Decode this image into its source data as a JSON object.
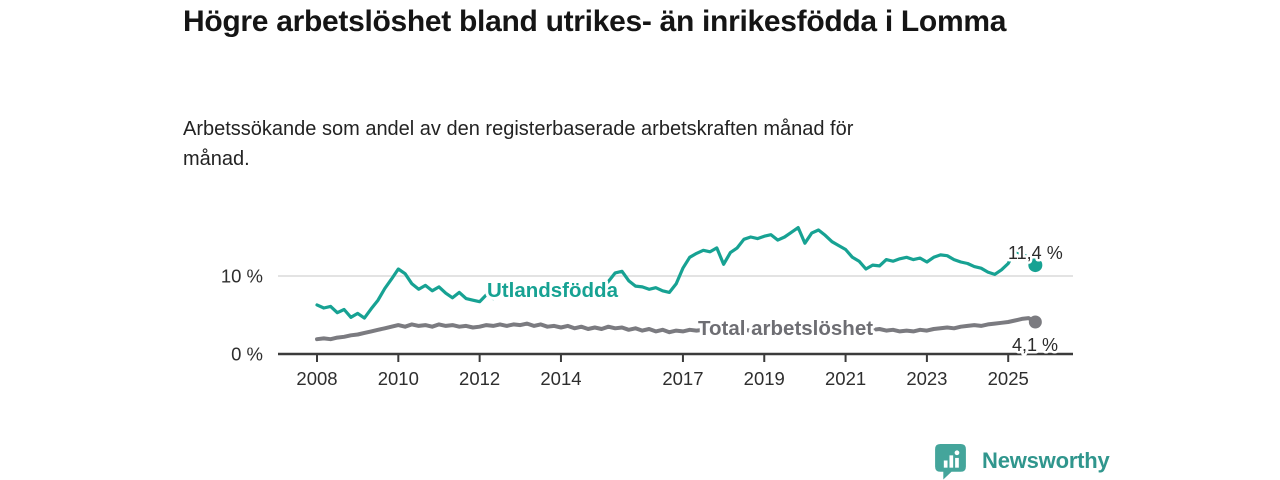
{
  "header": {},
  "chart_data": {
    "type": "line",
    "title": "Högre arbetslöshet bland utrikes- än inrikesfödda i Lomma",
    "subtitle": "Arbetssökande som andel av den registerbaserade arbetskraften månad för månad.",
    "x_start": 2008,
    "x_step": 0.16667,
    "x_range": [
      2008,
      2025.7
    ],
    "y_range": [
      0,
      17.5
    ],
    "grid": "horizontal gridline at 10% only",
    "legend": "inline series labels on chart",
    "x_ticks": [
      {
        "year": 2008,
        "label": "2008"
      },
      {
        "year": 2010,
        "label": "2010"
      },
      {
        "year": 2012,
        "label": "2012"
      },
      {
        "year": 2014,
        "label": "2014"
      },
      {
        "year": 2017,
        "label": "2017"
      },
      {
        "year": 2019,
        "label": "2019"
      },
      {
        "year": 2021,
        "label": "2021"
      },
      {
        "year": 2023,
        "label": "2023"
      },
      {
        "year": 2025,
        "label": "2025"
      }
    ],
    "y_ticks": [
      {
        "value": 0,
        "label": "0 %"
      },
      {
        "value": 10,
        "label": "10 %"
      }
    ],
    "colors": {
      "grid": "#dadada",
      "axis": "#3b3b3b",
      "axis_text": "#2e2e2e",
      "end_label_text": "#2b2b2b"
    },
    "series": [
      {
        "name": "Utlandsfödda",
        "color": "#17a293",
        "label_color": "#17a293",
        "end_label": "11,4 %",
        "values": [
          6.3,
          5.9,
          6.1,
          5.3,
          5.7,
          4.7,
          5.2,
          4.6,
          5.8,
          6.9,
          8.4,
          9.6,
          10.9,
          10.3,
          9.0,
          8.3,
          8.8,
          8.1,
          8.6,
          7.8,
          7.2,
          7.9,
          7.1,
          6.9,
          6.7,
          7.6,
          7.1,
          7.9,
          7.5,
          8.1,
          8.0,
          8.5,
          8.1,
          8.6,
          8.3,
          7.9,
          8.2,
          8.0,
          8.4,
          8.1,
          7.8,
          8.0,
          8.4,
          9.3,
          10.4,
          10.6,
          9.4,
          8.7,
          8.6,
          8.3,
          8.5,
          8.1,
          7.9,
          9.0,
          11.0,
          12.4,
          12.9,
          13.3,
          13.1,
          13.6,
          11.5,
          13.0,
          13.6,
          14.7,
          15.0,
          14.8,
          15.1,
          15.3,
          14.6,
          15.0,
          15.6,
          16.2,
          14.2,
          15.5,
          15.9,
          15.2,
          14.4,
          13.9,
          13.4,
          12.4,
          11.9,
          10.9,
          11.4,
          11.3,
          12.1,
          11.9,
          12.2,
          12.4,
          12.1,
          12.3,
          11.8,
          12.4,
          12.7,
          12.6,
          12.1,
          11.8,
          11.6,
          11.2,
          11.0,
          10.5,
          10.2,
          10.8,
          11.6,
          13.2,
          12.8,
          12.4,
          11.4
        ]
      },
      {
        "name": "Total arbetslöshet",
        "color": "#7b7b80",
        "label_color": "#6e6e73",
        "end_label": "4,1 %",
        "values": [
          1.9,
          2.0,
          1.9,
          2.1,
          2.2,
          2.4,
          2.5,
          2.7,
          2.9,
          3.1,
          3.3,
          3.5,
          3.7,
          3.5,
          3.8,
          3.6,
          3.7,
          3.5,
          3.8,
          3.6,
          3.7,
          3.5,
          3.6,
          3.4,
          3.5,
          3.7,
          3.6,
          3.8,
          3.6,
          3.8,
          3.7,
          3.9,
          3.6,
          3.8,
          3.5,
          3.6,
          3.4,
          3.6,
          3.3,
          3.5,
          3.2,
          3.4,
          3.2,
          3.5,
          3.3,
          3.4,
          3.1,
          3.3,
          3.0,
          3.2,
          2.9,
          3.1,
          2.8,
          3.0,
          2.9,
          3.1,
          3.0,
          3.1,
          2.9,
          3.0,
          2.8,
          3.0,
          2.9,
          3.1,
          3.0,
          3.1,
          3.0,
          3.2,
          3.1,
          3.3,
          3.2,
          3.4,
          3.5,
          3.7,
          3.9,
          3.8,
          3.6,
          3.5,
          3.4,
          3.5,
          3.3,
          3.2,
          3.1,
          3.2,
          3.0,
          3.1,
          2.9,
          3.0,
          2.9,
          3.1,
          3.0,
          3.2,
          3.3,
          3.4,
          3.3,
          3.5,
          3.6,
          3.7,
          3.6,
          3.8,
          3.9,
          4.0,
          4.1,
          4.3,
          4.5,
          4.6,
          4.1
        ]
      }
    ]
  },
  "footer": {
    "brand": "Newsworthy"
  }
}
